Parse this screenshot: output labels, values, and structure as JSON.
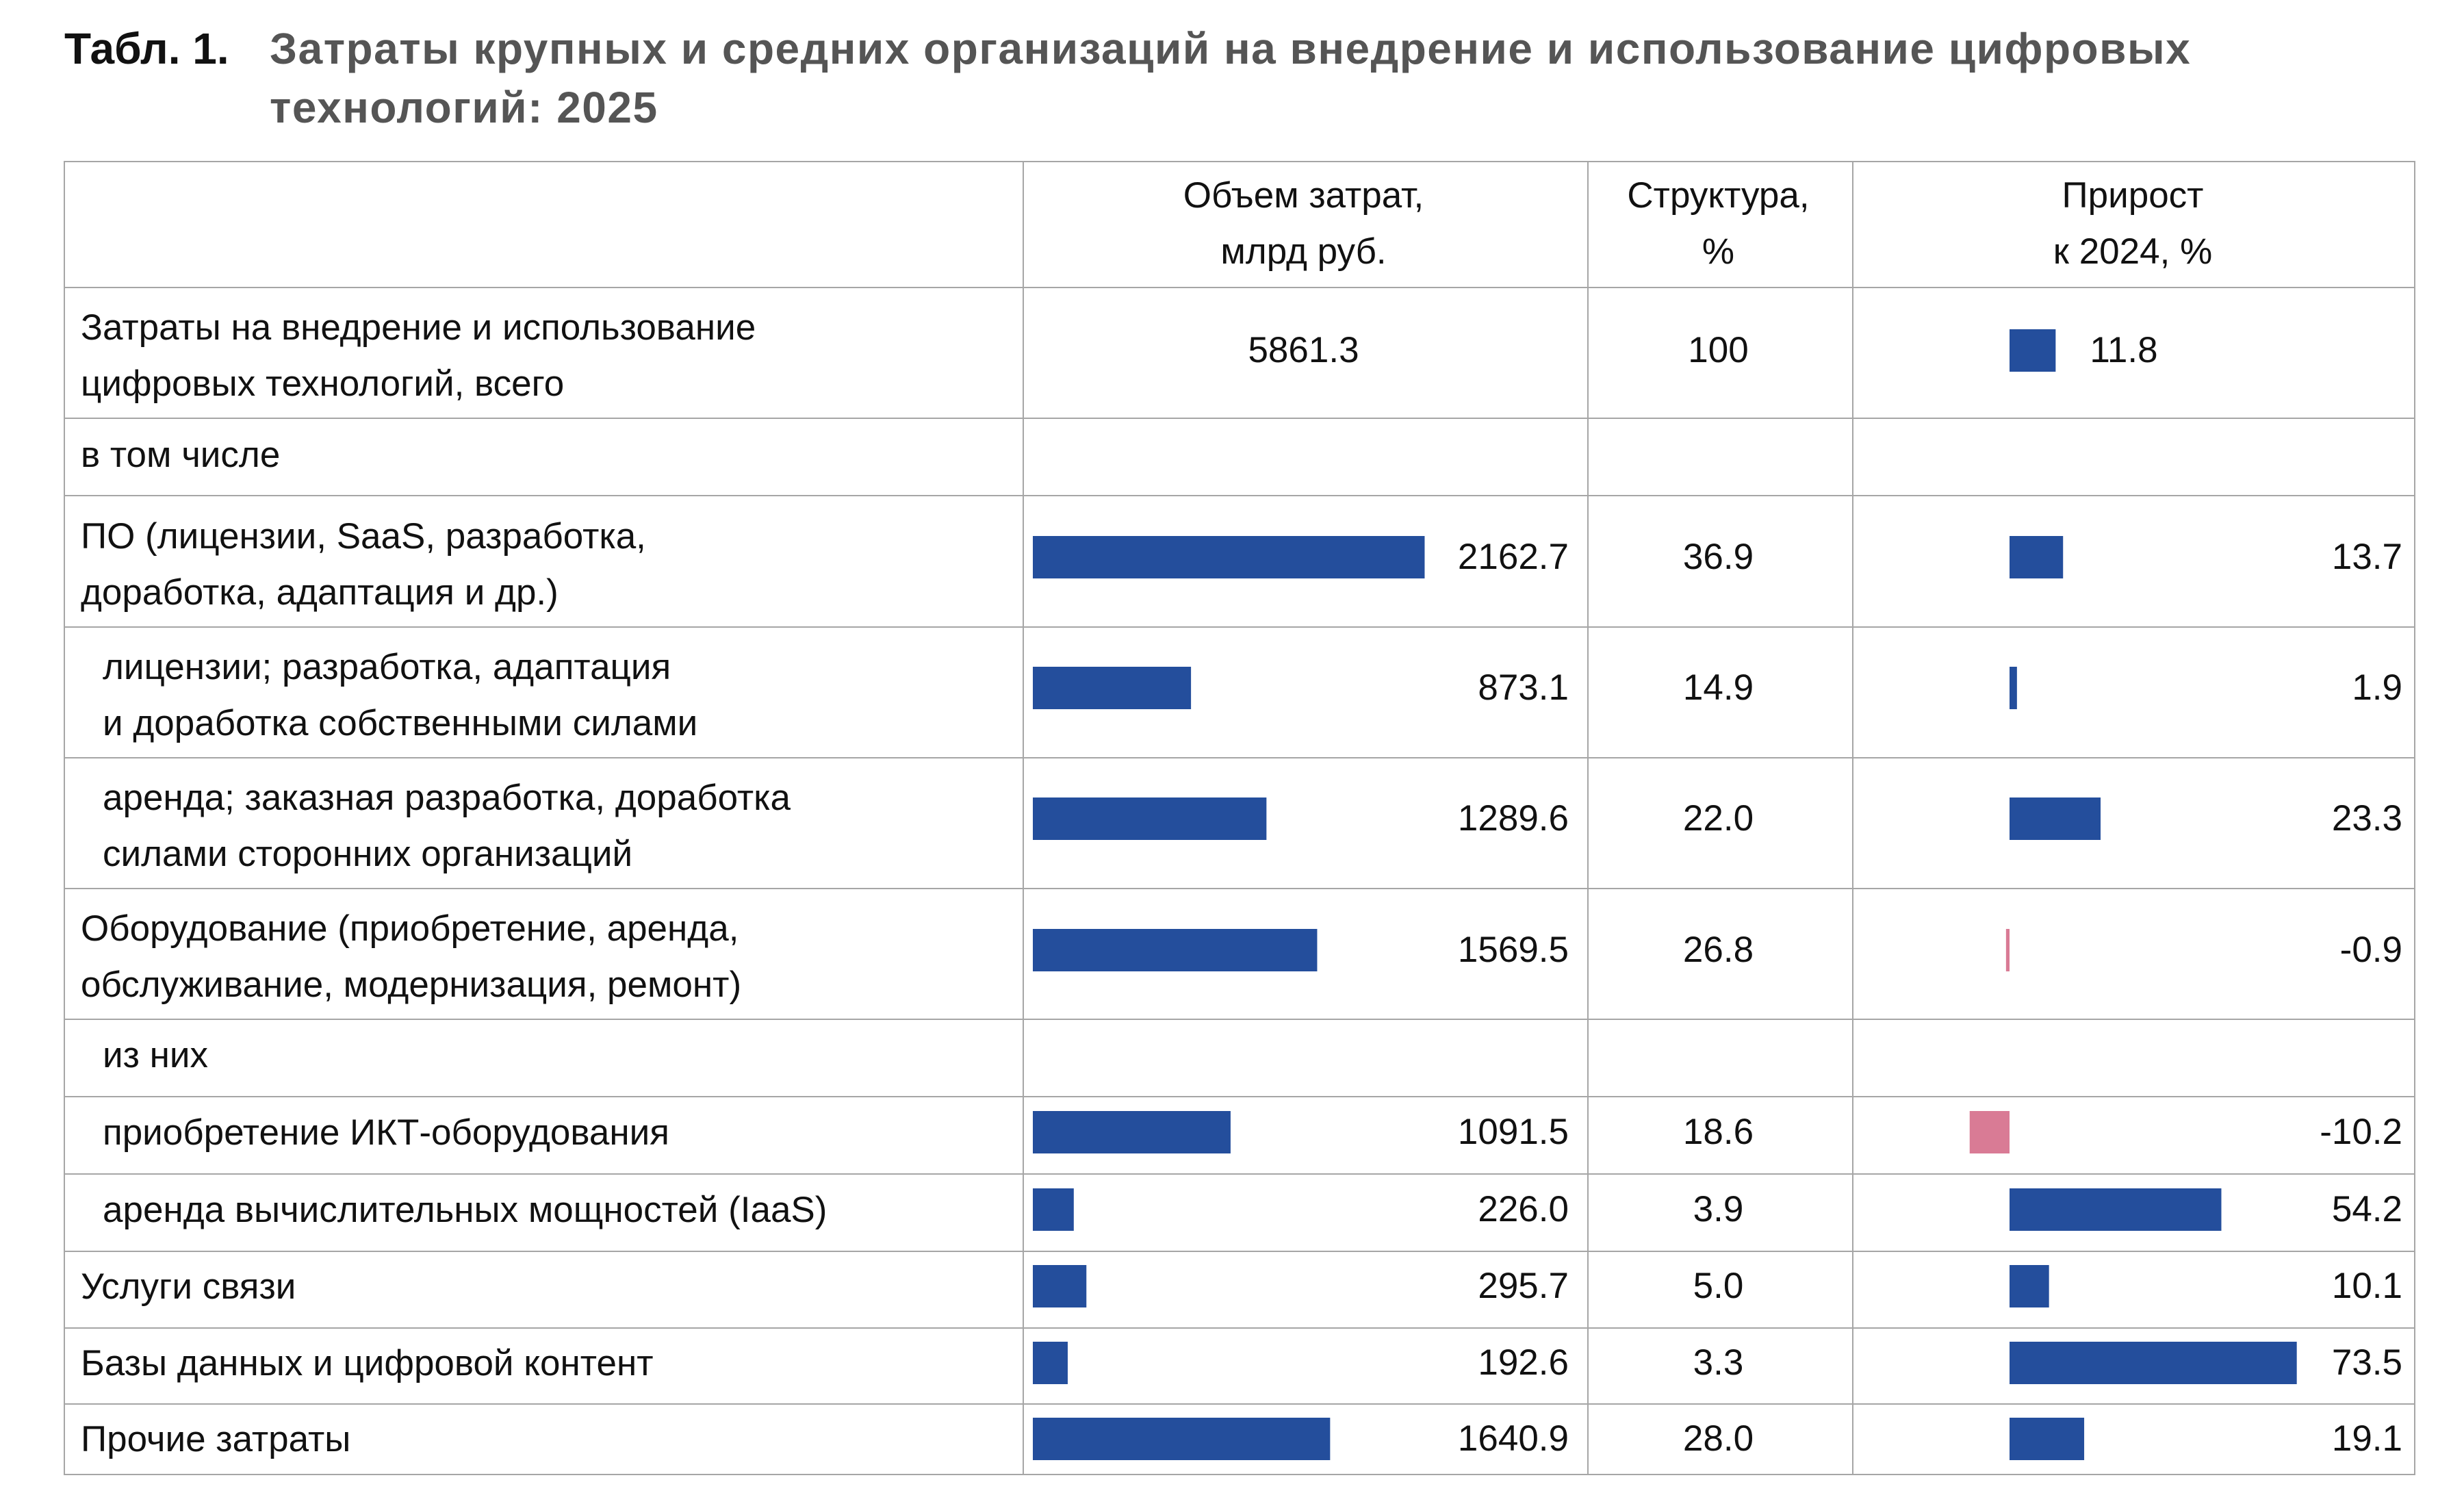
{
  "title": {
    "number": "Табл. 1.",
    "text": "Затраты крупных и средних организаций на внедрение и использование цифровых технологий: 2025"
  },
  "colors": {
    "bar": "#244e9c",
    "negative": "#d97b95",
    "grid": "#a6a6a6",
    "title_gray": "#555555"
  },
  "chart_data": {
    "type": "table",
    "columns": [
      {
        "key": "volume",
        "label": "Объем затрат, млрд руб."
      },
      {
        "key": "share",
        "label": "Структура, %"
      },
      {
        "key": "growth",
        "label": "Прирост к 2024, %"
      }
    ],
    "rows": [
      {
        "label": "Затраты на внедрение и использование цифровых технологий, всего",
        "volume": "5861.3",
        "share": "100",
        "growth": "11.8"
      },
      {
        "label": "в том числе",
        "volume": "",
        "share": "",
        "growth": ""
      },
      {
        "label": "ПО (лицензии, SaaS, разработка, доработка, адаптация и др.)",
        "volume": "2162.7",
        "share": "36.9",
        "growth": "13.7"
      },
      {
        "label": "лицензии; разработка, адаптация и доработка собственными силами",
        "volume": "873.1",
        "share": "14.9",
        "growth": "1.9"
      },
      {
        "label": "аренда; заказная разработка, доработка силами сторонних организаций",
        "volume": "1289.6",
        "share": "22.0",
        "growth": "23.3"
      },
      {
        "label": "Оборудование (приобретение, аренда, обслуживание, модернизация, ремонт)",
        "volume": "1569.5",
        "share": "26.8",
        "growth": "-0.9"
      },
      {
        "label": "из них",
        "volume": "",
        "share": "",
        "growth": ""
      },
      {
        "label": "приобретение ИКТ-оборудования",
        "volume": "1091.5",
        "share": "18.6",
        "growth": "-10.2"
      },
      {
        "label": "аренда вычислительных мощностей (IaaS)",
        "volume": "226.0",
        "share": "3.9",
        "growth": "54.2"
      },
      {
        "label": "Услуги связи",
        "volume": "295.7",
        "share": "5.0",
        "growth": "10.1"
      },
      {
        "label": "Базы данных и цифровой контент",
        "volume": "192.6",
        "share": "3.3",
        "growth": "73.5"
      },
      {
        "label": "Прочие затраты",
        "volume": "1640.9",
        "share": "28.0",
        "growth": "19.1"
      }
    ]
  },
  "labels": {
    "header": {
      "volume_l1": "Объем затрат,",
      "volume_l2": "млрд руб.",
      "share_l1": "Структура,",
      "share_l2": "%",
      "growth_l1": "Прирост",
      "growth_l2": "к 2024, %"
    },
    "rows": [
      {
        "l1": "Затраты на внедрение и использование",
        "l2": "цифровых технологий, всего"
      },
      {
        "l1": "в том числе"
      },
      {
        "l1": "ПО (лицензии, SaaS, разработка,",
        "l2": "доработка, адаптация и др.)"
      },
      {
        "l1": "лицензии; разработка, адаптация",
        "l2": "и доработка собственными силами"
      },
      {
        "l1": "аренда; заказная разработка, доработка",
        "l2": "силами сторонних организаций"
      },
      {
        "l1": "Оборудование (приобретение, аренда,",
        "l2": "обслуживание, модернизация, ремонт)"
      },
      {
        "l1": "из них"
      },
      {
        "l1": "приобретение ИКТ-оборудования"
      },
      {
        "l1": "аренда вычислительных мощностей (IaaS)"
      },
      {
        "l1": "Услуги связи"
      },
      {
        "l1": "Базы данных и цифровой контент"
      },
      {
        "l1": "Прочие затраты"
      }
    ]
  }
}
